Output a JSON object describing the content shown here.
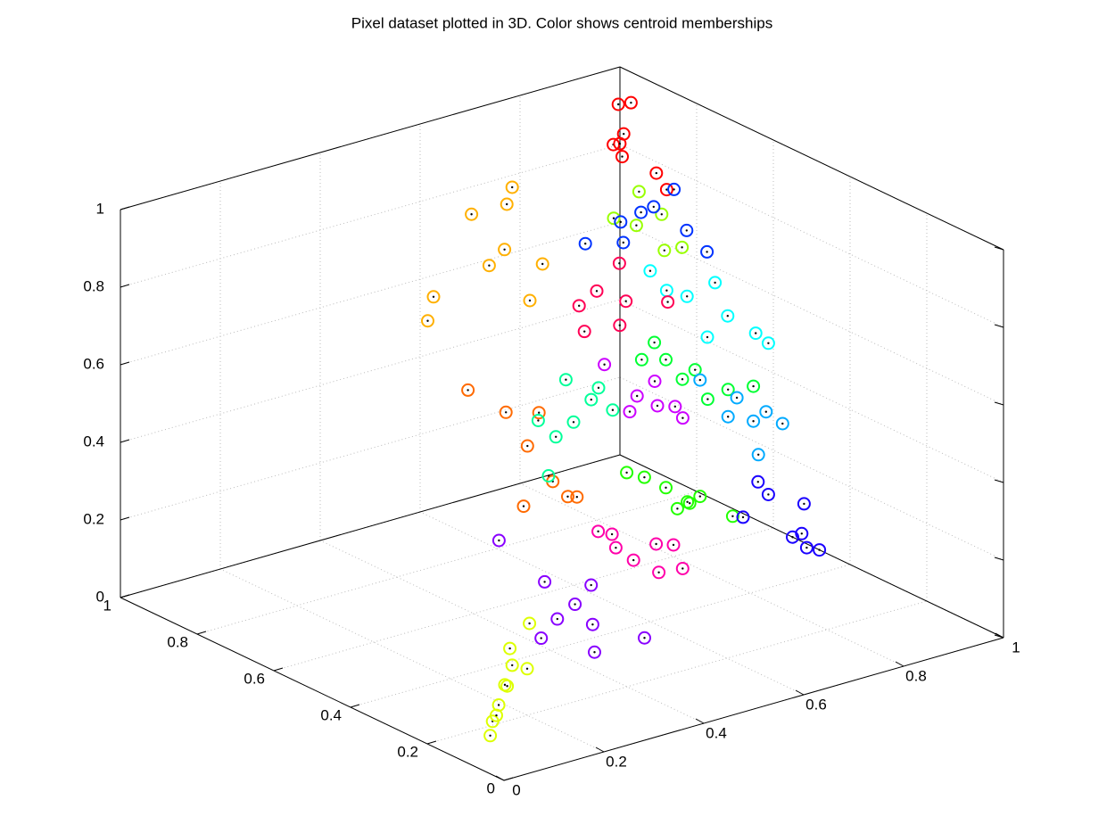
{
  "chart_data": {
    "type": "scatter3d",
    "title": "Pixel dataset plotted in 3D. Color shows centroid memberships",
    "xlim": [
      0,
      1
    ],
    "ylim": [
      0,
      1
    ],
    "zlim": [
      0,
      1
    ],
    "xticks": [
      0,
      0.2,
      0.4,
      0.6,
      0.8,
      1
    ],
    "yticks": [
      0,
      0.2,
      0.4,
      0.6,
      0.8,
      1
    ],
    "zticks": [
      0,
      0.2,
      0.4,
      0.6,
      0.8,
      1
    ],
    "grid": true,
    "series": [
      {
        "color": "#ff0000",
        "x": [
          0.92,
          0.93,
          0.9,
          0.91,
          0.95,
          0.92,
          0.9,
          0.94
        ],
        "y": [
          0.9,
          0.88,
          0.86,
          0.9,
          0.84,
          0.89,
          0.87,
          0.8
        ],
        "z": [
          0.98,
          0.99,
          0.93,
          0.88,
          0.82,
          0.85,
          0.9,
          0.8
        ]
      },
      {
        "color": "#ffb000",
        "x": [
          0.6,
          0.62,
          0.58,
          0.6,
          0.63,
          0.55,
          0.5,
          0.6,
          0.62
        ],
        "y": [
          0.76,
          0.8,
          0.84,
          0.78,
          0.72,
          0.9,
          0.85,
          0.82,
          0.74
        ],
        "z": [
          0.95,
          0.88,
          0.85,
          0.78,
          0.76,
          0.62,
          0.6,
          0.72,
          0.66
        ]
      },
      {
        "color": "#ff6a00",
        "x": [
          0.5,
          0.52,
          0.48,
          0.5,
          0.45,
          0.55,
          0.5,
          0.53
        ],
        "y": [
          0.59,
          0.55,
          0.62,
          0.56,
          0.68,
          0.55,
          0.6,
          0.5
        ],
        "z": [
          0.4,
          0.32,
          0.48,
          0.5,
          0.52,
          0.27,
          0.24,
          0.3
        ]
      },
      {
        "color": "#99ff00",
        "x": [
          0.9,
          0.91,
          0.88,
          0.93,
          0.92,
          0.94
        ],
        "y": [
          0.82,
          0.84,
          0.86,
          0.8,
          0.78,
          0.76
        ],
        "z": [
          0.8,
          0.7,
          0.72,
          0.74,
          0.66,
          0.67
        ]
      },
      {
        "color": "#0033ff",
        "x": [
          0.95,
          0.93,
          0.9,
          0.94,
          0.96,
          0.97,
          0.98,
          0.99
        ],
        "y": [
          0.88,
          0.9,
          0.96,
          0.92,
          0.86,
          0.82,
          0.8,
          0.76
        ],
        "z": [
          0.7,
          0.62,
          0.6,
          0.66,
          0.72,
          0.78,
          0.68,
          0.64
        ]
      },
      {
        "color": "#00ffff",
        "x": [
          0.95,
          0.96,
          0.97,
          0.98,
          0.99,
          0.94,
          0.93,
          0.96
        ],
        "y": [
          0.76,
          0.7,
          0.68,
          0.62,
          0.6,
          0.8,
          0.83,
          0.72
        ],
        "z": [
          0.54,
          0.6,
          0.52,
          0.5,
          0.48,
          0.54,
          0.58,
          0.45
        ]
      },
      {
        "color": "#ff0055",
        "x": [
          0.8,
          0.82,
          0.78,
          0.8,
          0.85,
          0.83,
          0.76
        ],
        "y": [
          0.8,
          0.75,
          0.82,
          0.74,
          0.68,
          0.78,
          0.78
        ],
        "z": [
          0.59,
          0.58,
          0.55,
          0.53,
          0.6,
          0.66,
          0.51
        ]
      },
      {
        "color": "#00ff33",
        "x": [
          0.9,
          0.91,
          0.89,
          0.92,
          0.94,
          0.9,
          0.96,
          0.93
        ],
        "y": [
          0.75,
          0.72,
          0.8,
          0.7,
          0.64,
          0.78,
          0.6,
          0.68
        ],
        "z": [
          0.4,
          0.36,
          0.38,
          0.39,
          0.36,
          0.43,
          0.38,
          0.32
        ]
      },
      {
        "color": "#00aaff",
        "x": [
          0.95,
          0.96,
          0.98,
          0.97,
          0.94,
          0.97,
          0.93
        ],
        "y": [
          0.63,
          0.6,
          0.55,
          0.58,
          0.64,
          0.6,
          0.7
        ],
        "z": [
          0.34,
          0.29,
          0.3,
          0.32,
          0.29,
          0.2,
          0.36
        ]
      },
      {
        "color": "#00ff99",
        "x": [
          0.6,
          0.62,
          0.64,
          0.58,
          0.56,
          0.65,
          0.55,
          0.6
        ],
        "y": [
          0.62,
          0.58,
          0.55,
          0.62,
          0.64,
          0.6,
          0.6,
          0.6
        ],
        "z": [
          0.52,
          0.48,
          0.46,
          0.38,
          0.42,
          0.49,
          0.3,
          0.42
        ]
      },
      {
        "color": "#cc00ff",
        "x": [
          0.85,
          0.86,
          0.88,
          0.8,
          0.88,
          0.87,
          0.82
        ],
        "y": [
          0.76,
          0.72,
          0.7,
          0.78,
          0.68,
          0.74,
          0.74
        ],
        "z": [
          0.32,
          0.31,
          0.31,
          0.41,
          0.29,
          0.36,
          0.3
        ]
      },
      {
        "color": "#22ff00",
        "x": [
          0.9,
          0.92,
          0.88,
          0.93,
          0.98,
          0.94,
          0.86,
          0.9
        ],
        "y": [
          0.75,
          0.72,
          0.78,
          0.7,
          0.68,
          0.74,
          0.8,
          0.72
        ],
        "z": [
          0.07,
          0.04,
          0.09,
          0.06,
          0.0,
          0.02,
          0.1,
          0.03
        ]
      },
      {
        "color": "#1a00ff",
        "x": [
          1,
          0.99,
          1,
          0.98,
          1,
          0.99,
          0.97,
          1
        ],
        "y": [
          0.64,
          0.6,
          0.52,
          0.5,
          0.55,
          0.5,
          0.64,
          0.48
        ],
        "z": [
          0.1,
          0.09,
          0.1,
          0.04,
          0.0,
          0.0,
          0.02,
          0.0
        ]
      },
      {
        "color": "#ff00aa",
        "x": [
          0.7,
          0.72,
          0.74,
          0.78,
          0.75,
          0.8,
          0.68,
          0.7
        ],
        "y": [
          0.62,
          0.6,
          0.56,
          0.55,
          0.58,
          0.6,
          0.64,
          0.63
        ],
        "z": [
          0.05,
          0.02,
          0.0,
          0.0,
          0.06,
          0.03,
          0.09,
          0.08
        ]
      },
      {
        "color": "#8800ff",
        "x": [
          0.45,
          0.46,
          0.42,
          0.5,
          0.52,
          0.48,
          0.55,
          0.45,
          0.42
        ],
        "y": [
          0.48,
          0.46,
          0.45,
          0.42,
          0.45,
          0.44,
          0.35,
          0.35,
          0.56
        ],
        "z": [
          0.12,
          0.03,
          0.0,
          0.02,
          0.1,
          0.07,
          0.0,
          0.0,
          0.2
        ]
      },
      {
        "color": "#ddff00",
        "x": [
          0.15,
          0.17,
          0.16,
          0.12,
          0.1,
          0.08,
          0.2,
          0.22,
          0.14,
          0.1
        ],
        "y": [
          0.18,
          0.2,
          0.2,
          0.17,
          0.16,
          0.14,
          0.2,
          0.22,
          0.18,
          0.15
        ],
        "z": [
          0.2,
          0.14,
          0.09,
          0.07,
          0.04,
          0.02,
          0.12,
          0.22,
          0.11,
          0.06
        ]
      }
    ]
  }
}
